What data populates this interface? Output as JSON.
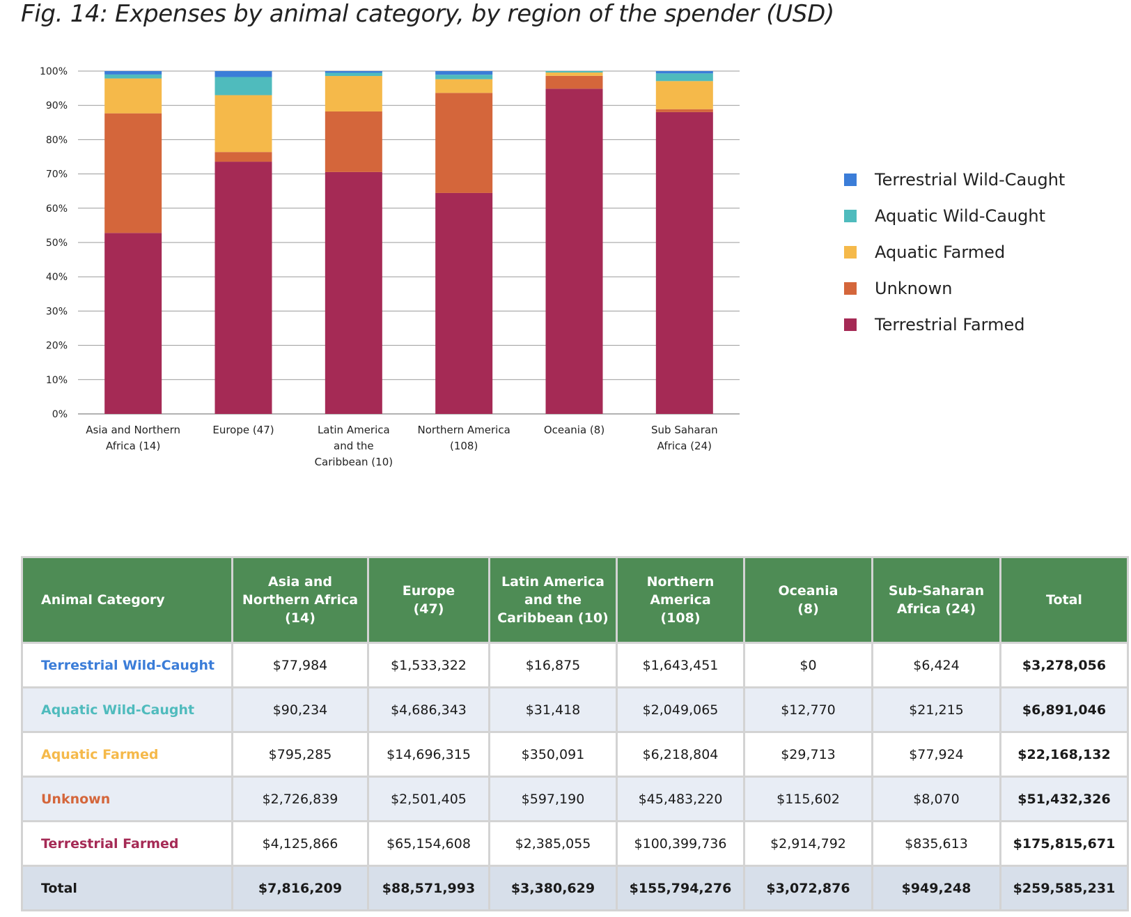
{
  "figure": {
    "title": "Fig. 14: Expenses by animal category, by region of the spender (USD)"
  },
  "colors": {
    "terrestrial_wild": "#3b7dd8",
    "aquatic_wild": "#4fbbbd",
    "aquatic_farmed": "#f5b94a",
    "unknown": "#d4663b",
    "terrestrial_farmed": "#a52a55",
    "table_header": "#4e8c55"
  },
  "chart_data": {
    "type": "bar",
    "stacked": true,
    "normalized": true,
    "categories": [
      [
        "Asia and Northern",
        "Africa (14)"
      ],
      [
        "Europe (47)"
      ],
      [
        "Latin America",
        "and the",
        "Caribbean (10)"
      ],
      [
        "Northern America",
        "(108)"
      ],
      [
        "Oceania (8)"
      ],
      [
        "Sub Saharan",
        "Africa (24)"
      ]
    ],
    "series": [
      {
        "name": "Terrestrial Farmed",
        "color": "#a52a55",
        "values": [
          4125866,
          65154608,
          2385055,
          100399736,
          2914792,
          835613
        ]
      },
      {
        "name": "Unknown",
        "color": "#d4663b",
        "values": [
          2726839,
          2501405,
          597190,
          45483220,
          115602,
          8070
        ]
      },
      {
        "name": "Aquatic Farmed",
        "color": "#f5b94a",
        "values": [
          795285,
          14696315,
          350091,
          6218804,
          29713,
          77924
        ]
      },
      {
        "name": "Aquatic Wild-Caught",
        "color": "#4fbbbd",
        "values": [
          90234,
          4686343,
          31418,
          2049065,
          12770,
          21215
        ]
      },
      {
        "name": "Terrestrial Wild-Caught",
        "color": "#3b7dd8",
        "values": [
          77984,
          1533322,
          16875,
          1643451,
          0,
          6424
        ]
      }
    ],
    "yticks": [
      "0%",
      "10%",
      "20%",
      "30%",
      "40%",
      "50%",
      "60%",
      "70%",
      "80%",
      "90%",
      "100%"
    ],
    "ylim": [
      0,
      100
    ],
    "legend_position": "right",
    "legend_order": [
      "Terrestrial Wild-Caught",
      "Aquatic Wild-Caught",
      "Aquatic Farmed",
      "Unknown",
      "Terrestrial Farmed"
    ]
  },
  "table": {
    "headers": [
      "Animal Category",
      "Asia and\nNorthern Africa\n(14)",
      "Europe\n(47)",
      "Latin America\nand the\nCaribbean (10)",
      "Northern\nAmerica\n(108)",
      "Oceania\n(8)",
      "Sub-Saharan\nAfrica (24)",
      "Total"
    ],
    "rows": [
      {
        "category": "Terrestrial Wild-Caught",
        "color": "#3b7dd8",
        "values": [
          "$77,984",
          "$1,533,322",
          "$16,875",
          "$1,643,451",
          "$0",
          "$6,424"
        ],
        "total": "$3,278,056"
      },
      {
        "category": "Aquatic Wild-Caught",
        "color": "#4fbbbd",
        "values": [
          "$90,234",
          "$4,686,343",
          "$31,418",
          "$2,049,065",
          "$12,770",
          "$21,215"
        ],
        "total": "$6,891,046"
      },
      {
        "category": "Aquatic Farmed",
        "color": "#f5b94a",
        "values": [
          "$795,285",
          "$14,696,315",
          "$350,091",
          "$6,218,804",
          "$29,713",
          "$77,924"
        ],
        "total": "$22,168,132"
      },
      {
        "category": "Unknown",
        "color": "#d4663b",
        "values": [
          "$2,726,839",
          "$2,501,405",
          "$597,190",
          "$45,483,220",
          "$115,602",
          "$8,070"
        ],
        "total": "$51,432,326"
      },
      {
        "category": "Terrestrial Farmed",
        "color": "#a52a55",
        "values": [
          "$4,125,866",
          "$65,154,608",
          "$2,385,055",
          "$100,399,736",
          "$2,914,792",
          "$835,613"
        ],
        "total": "$175,815,671"
      }
    ],
    "grand_total": {
      "label": "Total",
      "values": [
        "$7,816,209",
        "$88,571,993",
        "$3,380,629",
        "$155,794,276",
        "$3,072,876",
        "$949,248"
      ],
      "total": "$259,585,231"
    }
  }
}
